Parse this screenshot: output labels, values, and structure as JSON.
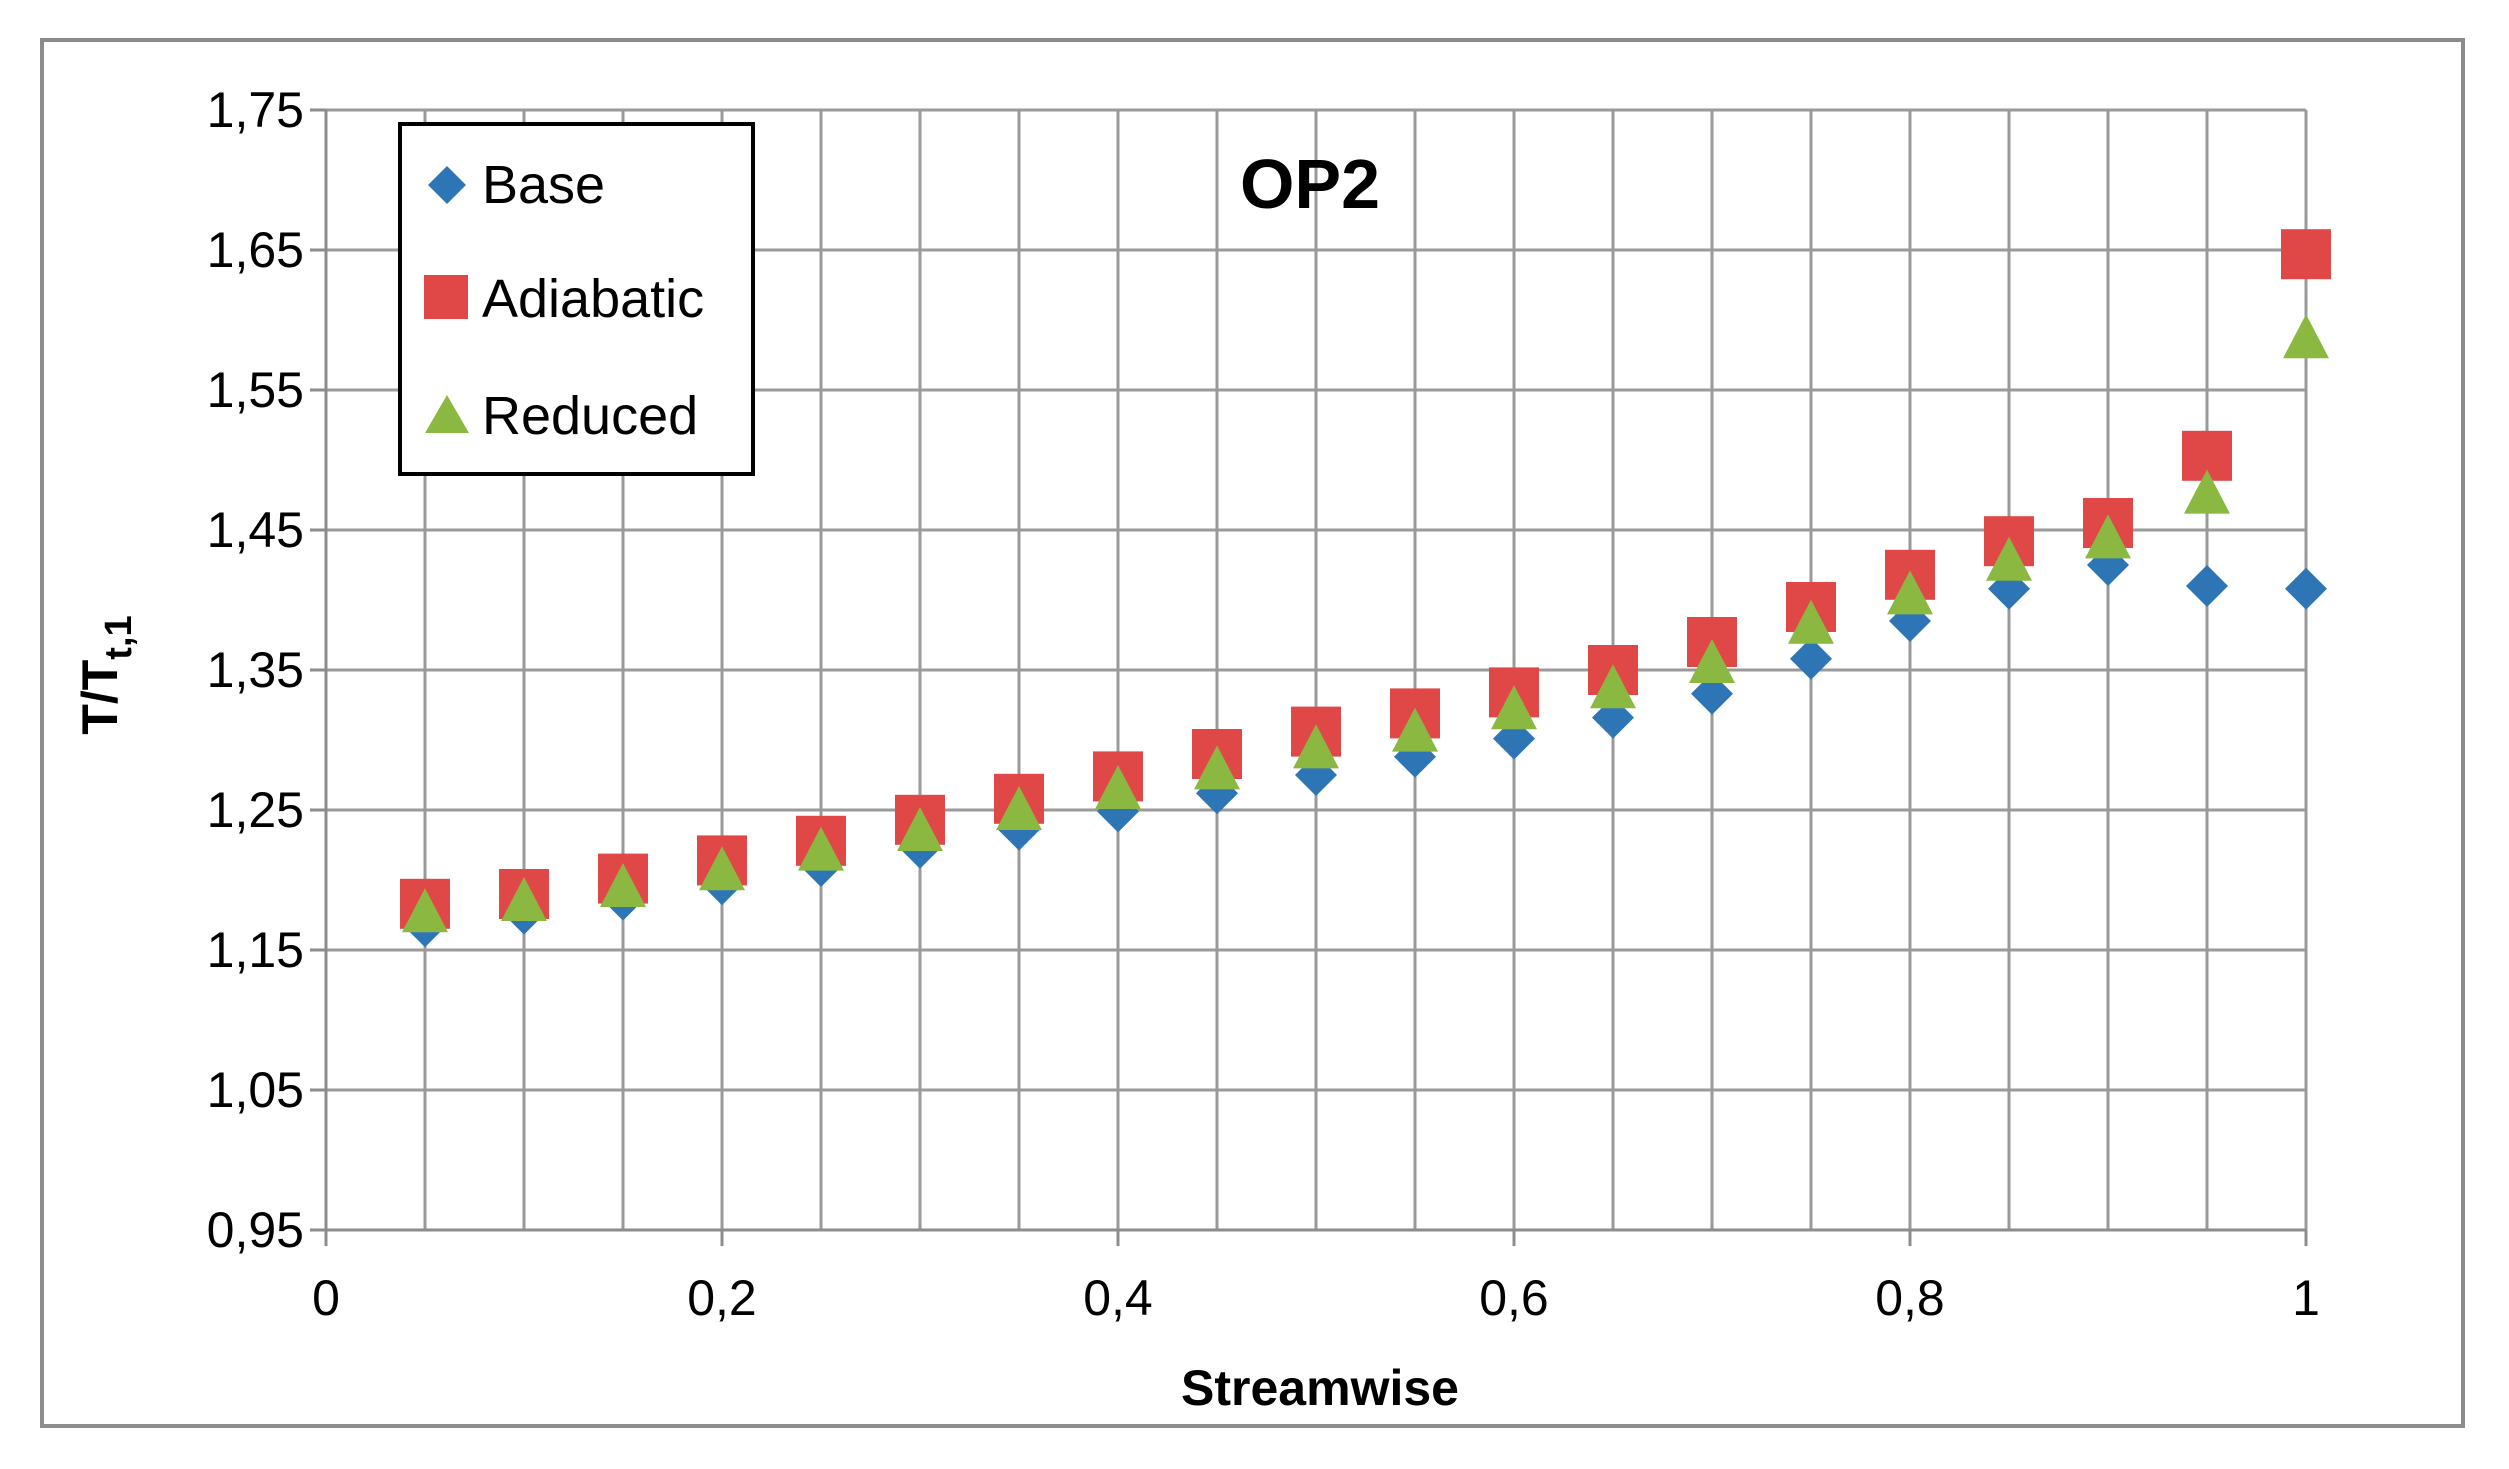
{
  "chart_data": {
    "type": "scatter",
    "title": "OP2",
    "xlabel": "Streamwise",
    "ylabel_main": "T/T",
    "ylabel_sub": "t,1",
    "xlim": [
      0,
      1
    ],
    "ylim": [
      0.95,
      1.75
    ],
    "x_ticks": [
      0,
      0.2,
      0.4,
      0.6,
      0.8,
      1
    ],
    "x_tick_labels": [
      "0",
      "0,2",
      "0,4",
      "0,6",
      "0,8",
      "1"
    ],
    "y_ticks": [
      0.95,
      1.05,
      1.15,
      1.25,
      1.35,
      1.45,
      1.55,
      1.65,
      1.75
    ],
    "y_tick_labels": [
      "0,95",
      "1,05",
      "1,15",
      "1,25",
      "1,35",
      "1,45",
      "1,55",
      "1,65",
      "1,75"
    ],
    "x_minor_step": 0.05,
    "grid": true,
    "legend_position": "top-left",
    "x": [
      0.05,
      0.1,
      0.15,
      0.2,
      0.25,
      0.3,
      0.35,
      0.4,
      0.45,
      0.5,
      0.55,
      0.6,
      0.65,
      0.7,
      0.75,
      0.8,
      0.85,
      0.9,
      0.95,
      1.0
    ],
    "series": [
      {
        "name": "Base",
        "marker": "diamond",
        "color": "#2e75b6",
        "values": [
          1.167,
          1.176,
          1.186,
          1.197,
          1.21,
          1.223,
          1.236,
          1.249,
          1.262,
          1.275,
          1.288,
          1.301,
          1.316,
          1.333,
          1.358,
          1.385,
          1.408,
          1.425,
          1.41,
          1.408
        ]
      },
      {
        "name": "Adiabatic",
        "marker": "square",
        "color": "#e04848",
        "values": [
          1.183,
          1.19,
          1.201,
          1.214,
          1.228,
          1.243,
          1.258,
          1.274,
          1.29,
          1.306,
          1.319,
          1.334,
          1.35,
          1.37,
          1.395,
          1.418,
          1.442,
          1.455,
          1.503,
          1.647
        ]
      },
      {
        "name": "Reduced",
        "marker": "triangle",
        "color": "#8ab840",
        "values": [
          1.177,
          1.185,
          1.195,
          1.207,
          1.221,
          1.235,
          1.25,
          1.265,
          1.279,
          1.294,
          1.306,
          1.322,
          1.337,
          1.355,
          1.383,
          1.404,
          1.428,
          1.444,
          1.476,
          1.587
        ]
      }
    ]
  }
}
